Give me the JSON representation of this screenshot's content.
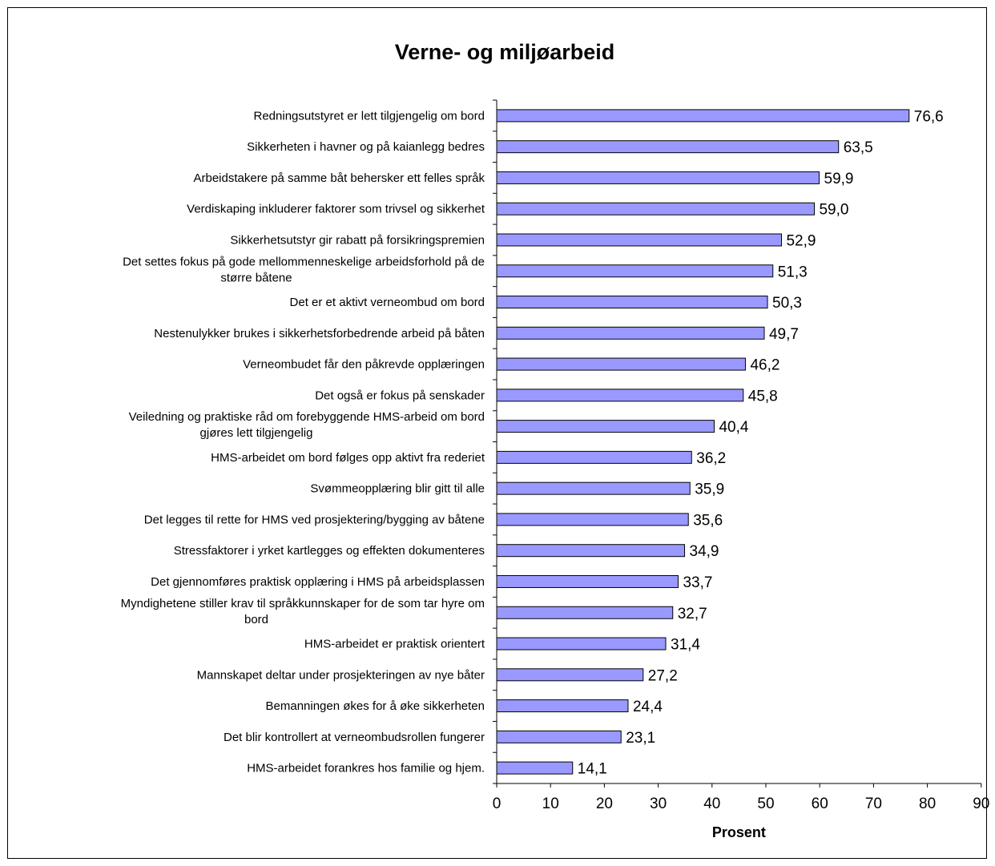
{
  "chart_data": {
    "type": "bar",
    "orientation": "horizontal",
    "title": "Verne- og miljøarbeid",
    "xlabel": "Prosent",
    "ylabel": "",
    "xlim": [
      0,
      90
    ],
    "xticks": [
      "0",
      "10",
      "20",
      "30",
      "40",
      "50",
      "60",
      "70",
      "80",
      "90"
    ],
    "grid": false,
    "legend": "none",
    "bar_color": "#9999ff",
    "categories": [
      "Redningsutstyret er lett tilgjengelig om bord",
      "Sikkerheten i havner og på kaianlegg bedres",
      "Arbeidstakere på samme båt behersker ett felles språk",
      "Verdiskaping inkluderer faktorer som trivsel og sikkerhet",
      "Sikkerhetsutstyr gir rabatt på forsikringspremien",
      "Det settes fokus på gode mellommenneskelige arbeidsforhold på de større båtene",
      "Det er et aktivt verneombud om bord",
      "Nestenulykker brukes i sikkerhetsforbedrende arbeid på båten",
      "Verneombudet får den påkrevde opplæringen",
      "Det også er fokus på senskader",
      "Veiledning og praktiske råd om forebyggende HMS-arbeid om bord gjøres lett tilgjengelig",
      "HMS-arbeidet om bord følges opp aktivt fra rederiet",
      "Svømmeopplæring blir gitt til alle",
      "Det legges til rette for HMS ved prosjektering/bygging av båtene",
      "Stressfaktorer i yrket kartlegges og effekten dokumenteres",
      "Det gjennomføres praktisk opplæring i HMS på arbeidsplassen",
      "Myndighetene stiller krav til språkkunnskaper for de som tar hyre om bord",
      "HMS-arbeidet er praktisk orientert",
      "Mannskapet deltar under prosjekteringen av nye båter",
      "Bemanningen økes for å øke sikkerheten",
      "Det blir kontrollert at verneombudsrollen fungerer",
      "HMS-arbeidet forankres hos familie og hjem."
    ],
    "category_lines": [
      [
        "Redningsutstyret er lett tilgjengelig om bord"
      ],
      [
        "Sikkerheten i havner og på kaianlegg bedres"
      ],
      [
        "Arbeidstakere på samme båt behersker ett felles språk"
      ],
      [
        "Verdiskaping inkluderer faktorer som trivsel og sikkerhet"
      ],
      [
        "Sikkerhetsutstyr gir rabatt på forsikringspremien"
      ],
      [
        "Det settes fokus på gode mellommenneskelige arbeidsforhold på de",
        "større båtene"
      ],
      [
        "Det er et aktivt verneombud om bord"
      ],
      [
        "Nestenulykker brukes i sikkerhetsforbedrende arbeid på båten"
      ],
      [
        "Verneombudet får den påkrevde opplæringen"
      ],
      [
        "Det også er fokus på senskader"
      ],
      [
        "Veiledning og praktiske råd om forebyggende HMS-arbeid om bord",
        "gjøres lett tilgjengelig"
      ],
      [
        "HMS-arbeidet om bord følges opp aktivt fra rederiet"
      ],
      [
        "Svømmeopplæring blir gitt til alle"
      ],
      [
        "Det legges til rette for HMS ved prosjektering/bygging av båtene"
      ],
      [
        "Stressfaktorer i yrket kartlegges og effekten dokumenteres"
      ],
      [
        "Det gjennomføres praktisk opplæring i HMS på arbeidsplassen"
      ],
      [
        "Myndighetene stiller krav til språkkunnskaper for de som tar hyre om",
        "bord"
      ],
      [
        "HMS-arbeidet er praktisk orientert"
      ],
      [
        "Mannskapet deltar under prosjekteringen av nye båter"
      ],
      [
        "Bemanningen økes for å øke sikkerheten"
      ],
      [
        "Det blir kontrollert at verneombudsrollen fungerer"
      ],
      [
        "HMS-arbeidet forankres hos familie og hjem."
      ]
    ],
    "values": [
      76.6,
      63.5,
      59.9,
      59.0,
      52.9,
      51.3,
      50.3,
      49.7,
      46.2,
      45.8,
      40.4,
      36.2,
      35.9,
      35.6,
      34.9,
      33.7,
      32.7,
      31.4,
      27.2,
      24.4,
      23.1,
      14.1
    ],
    "value_labels": [
      "76,6",
      "63,5",
      "59,9",
      "59,0",
      "52,9",
      "51,3",
      "50,3",
      "49,7",
      "46,2",
      "45,8",
      "40,4",
      "36,2",
      "35,9",
      "35,6",
      "34,9",
      "33,7",
      "32,7",
      "31,4",
      "27,2",
      "24,4",
      "23,1",
      "14,1"
    ]
  }
}
